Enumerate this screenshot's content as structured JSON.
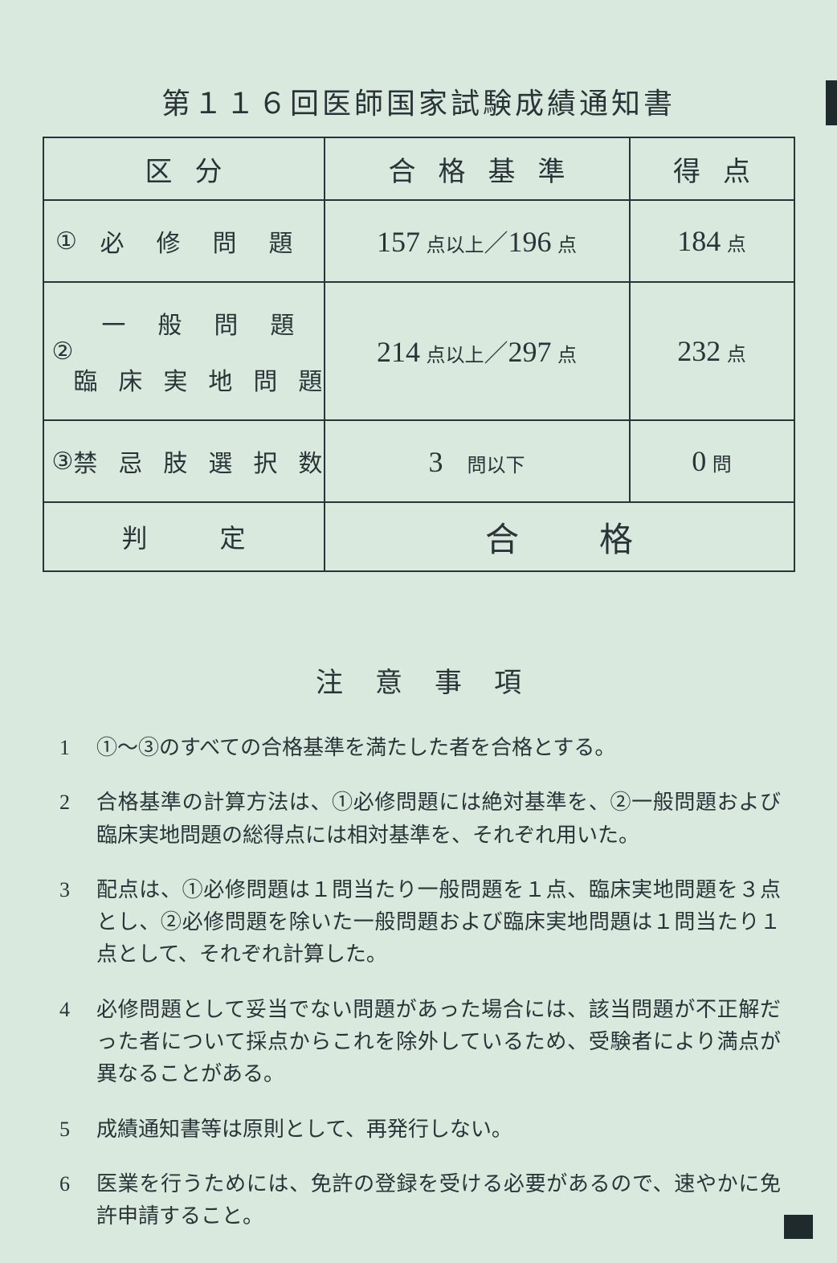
{
  "title": "第１１６回医師国家試験成績通知書",
  "table": {
    "headers": {
      "category": "区分",
      "criteria": "合格基準",
      "score": "得点"
    },
    "rows": [
      {
        "index": "①",
        "label_html": "<span class='spread4'>必修問題</span>",
        "criteria_html": "<span class='num'>157</span> <span class='unit'>点以上</span>／<span class='num'>196</span> <span class='unit'>点</span>",
        "score_html": "<span class='num'>184</span> <span class='unit'>点</span>",
        "tall": false
      },
      {
        "index": "②",
        "label_html": "<div class='stack'><span class='spread4'>一般問題</span><span class='spread6'>臨床実地問題</span></div>",
        "criteria_html": "<span class='num'>214</span> <span class='unit'>点以上</span>／<span class='num'>297</span> <span class='unit'>点</span>",
        "score_html": "<span class='num'>232</span> <span class='unit'>点</span>",
        "tall": true
      },
      {
        "index": "③",
        "label_html": "<span class='spread6'>禁忌肢選択数</span>",
        "criteria_html": "<span class='num'>3</span>　<span class='unit'>問以下</span>",
        "score_html": "<span class='num'>0</span> <span class='unit'>問</span>",
        "tall": false
      }
    ],
    "verdict": {
      "label": "判定",
      "result": "合格"
    }
  },
  "notes_title": "注意事項",
  "notes": [
    {
      "n": "1",
      "t": "①〜③のすべての合格基準を満たした者を合格とする。"
    },
    {
      "n": "2",
      "t": "合格基準の計算方法は、①必修問題には絶対基準を、②一般問題および臨床実地問題の総得点には相対基準を、それぞれ用いた。"
    },
    {
      "n": "3",
      "t": "配点は、①必修問題は１問当たり一般問題を１点、臨床実地問題を３点とし、②必修問題を除いた一般問題および臨床実地問題は１問当たり１点として、それぞれ計算した。"
    },
    {
      "n": "4",
      "t": "必修問題として妥当でない問題があった場合には、該当問題が不正解だった者について採点からこれを除外しているため、受験者により満点が異なることがある。"
    },
    {
      "n": "5",
      "t": "成績通知書等は原則として、再発行しない。"
    },
    {
      "n": "6",
      "t": "医業を行うためには、免許の登録を受ける必要があるので、速やかに免許申請すること。"
    }
  ],
  "colors": {
    "background": "#d9e9dd",
    "text": "#2a3438",
    "border": "#2a3438"
  }
}
